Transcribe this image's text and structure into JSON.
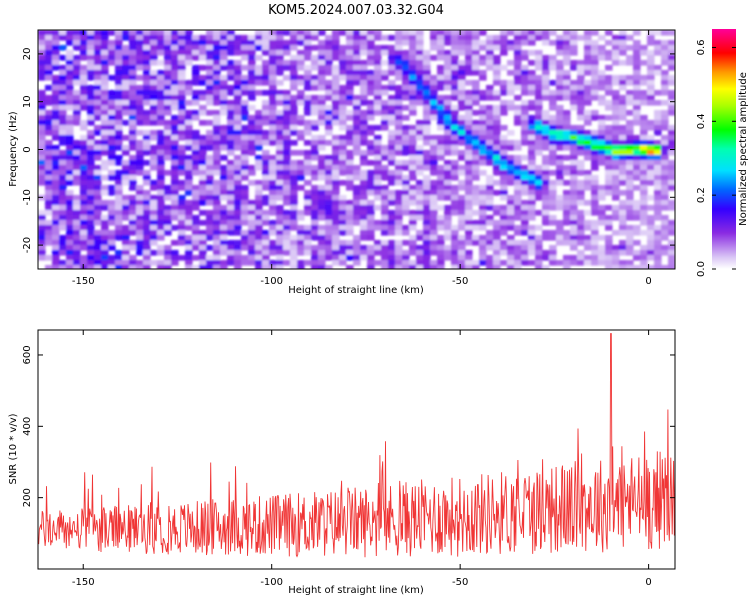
{
  "title": "KOM5.2024.007.03.32.G04",
  "chart_data": [
    {
      "type": "heatmap",
      "xlabel": "Height of straight line (km)",
      "ylabel": "Frequency (Hz)",
      "xlim": [
        -162,
        7
      ],
      "ylim": [
        -25,
        25
      ],
      "x_ticks": [
        -150,
        -100,
        -50,
        0
      ],
      "y_ticks": [
        -20,
        -10,
        0,
        10,
        20
      ],
      "colorbar": {
        "label": "Normalized spectral amplitude",
        "range": [
          0,
          0.65
        ],
        "ticks": [
          "0.0",
          "0.2",
          "0.4",
          "0.6"
        ],
        "colormap": "white-purple-blue-cyan-green-yellow-red-magenta"
      },
      "features": [
        {
          "label": "",
          "points": [
            [
              -67,
              19
            ],
            [
              -62,
              15
            ],
            [
              -57,
              10
            ],
            [
              -52,
              5
            ],
            [
              -47,
              2
            ],
            [
              -42,
              -1
            ],
            [
              -37,
              -4
            ],
            [
              -33,
              -5.5
            ],
            [
              -29,
              -7
            ]
          ]
        },
        {
          "label": "",
          "points": [
            [
              -30,
              5
            ],
            [
              -25,
              3
            ],
            [
              -20,
              2.5
            ],
            [
              -14,
              1
            ],
            [
              -8,
              -0.5
            ],
            [
              -3,
              0
            ],
            [
              2,
              -0.5
            ]
          ]
        }
      ],
      "peak": {
        "x": -2,
        "y": 0,
        "value": 0.65
      }
    },
    {
      "type": "line",
      "xlabel": "Height of straight line (km)",
      "ylabel": "SNR (10 * v/v)",
      "xlim": [
        -162,
        7
      ],
      "ylim": [
        0,
        670
      ],
      "x_ticks": [
        -150,
        -100,
        -50,
        0
      ],
      "y_ticks": [
        200,
        400,
        600
      ],
      "series": [
        {
          "color": "#f03535",
          "style": "noisy",
          "base_start": 110,
          "base_end": 200,
          "peak": {
            "x": -10,
            "y": 660
          }
        }
      ]
    }
  ]
}
